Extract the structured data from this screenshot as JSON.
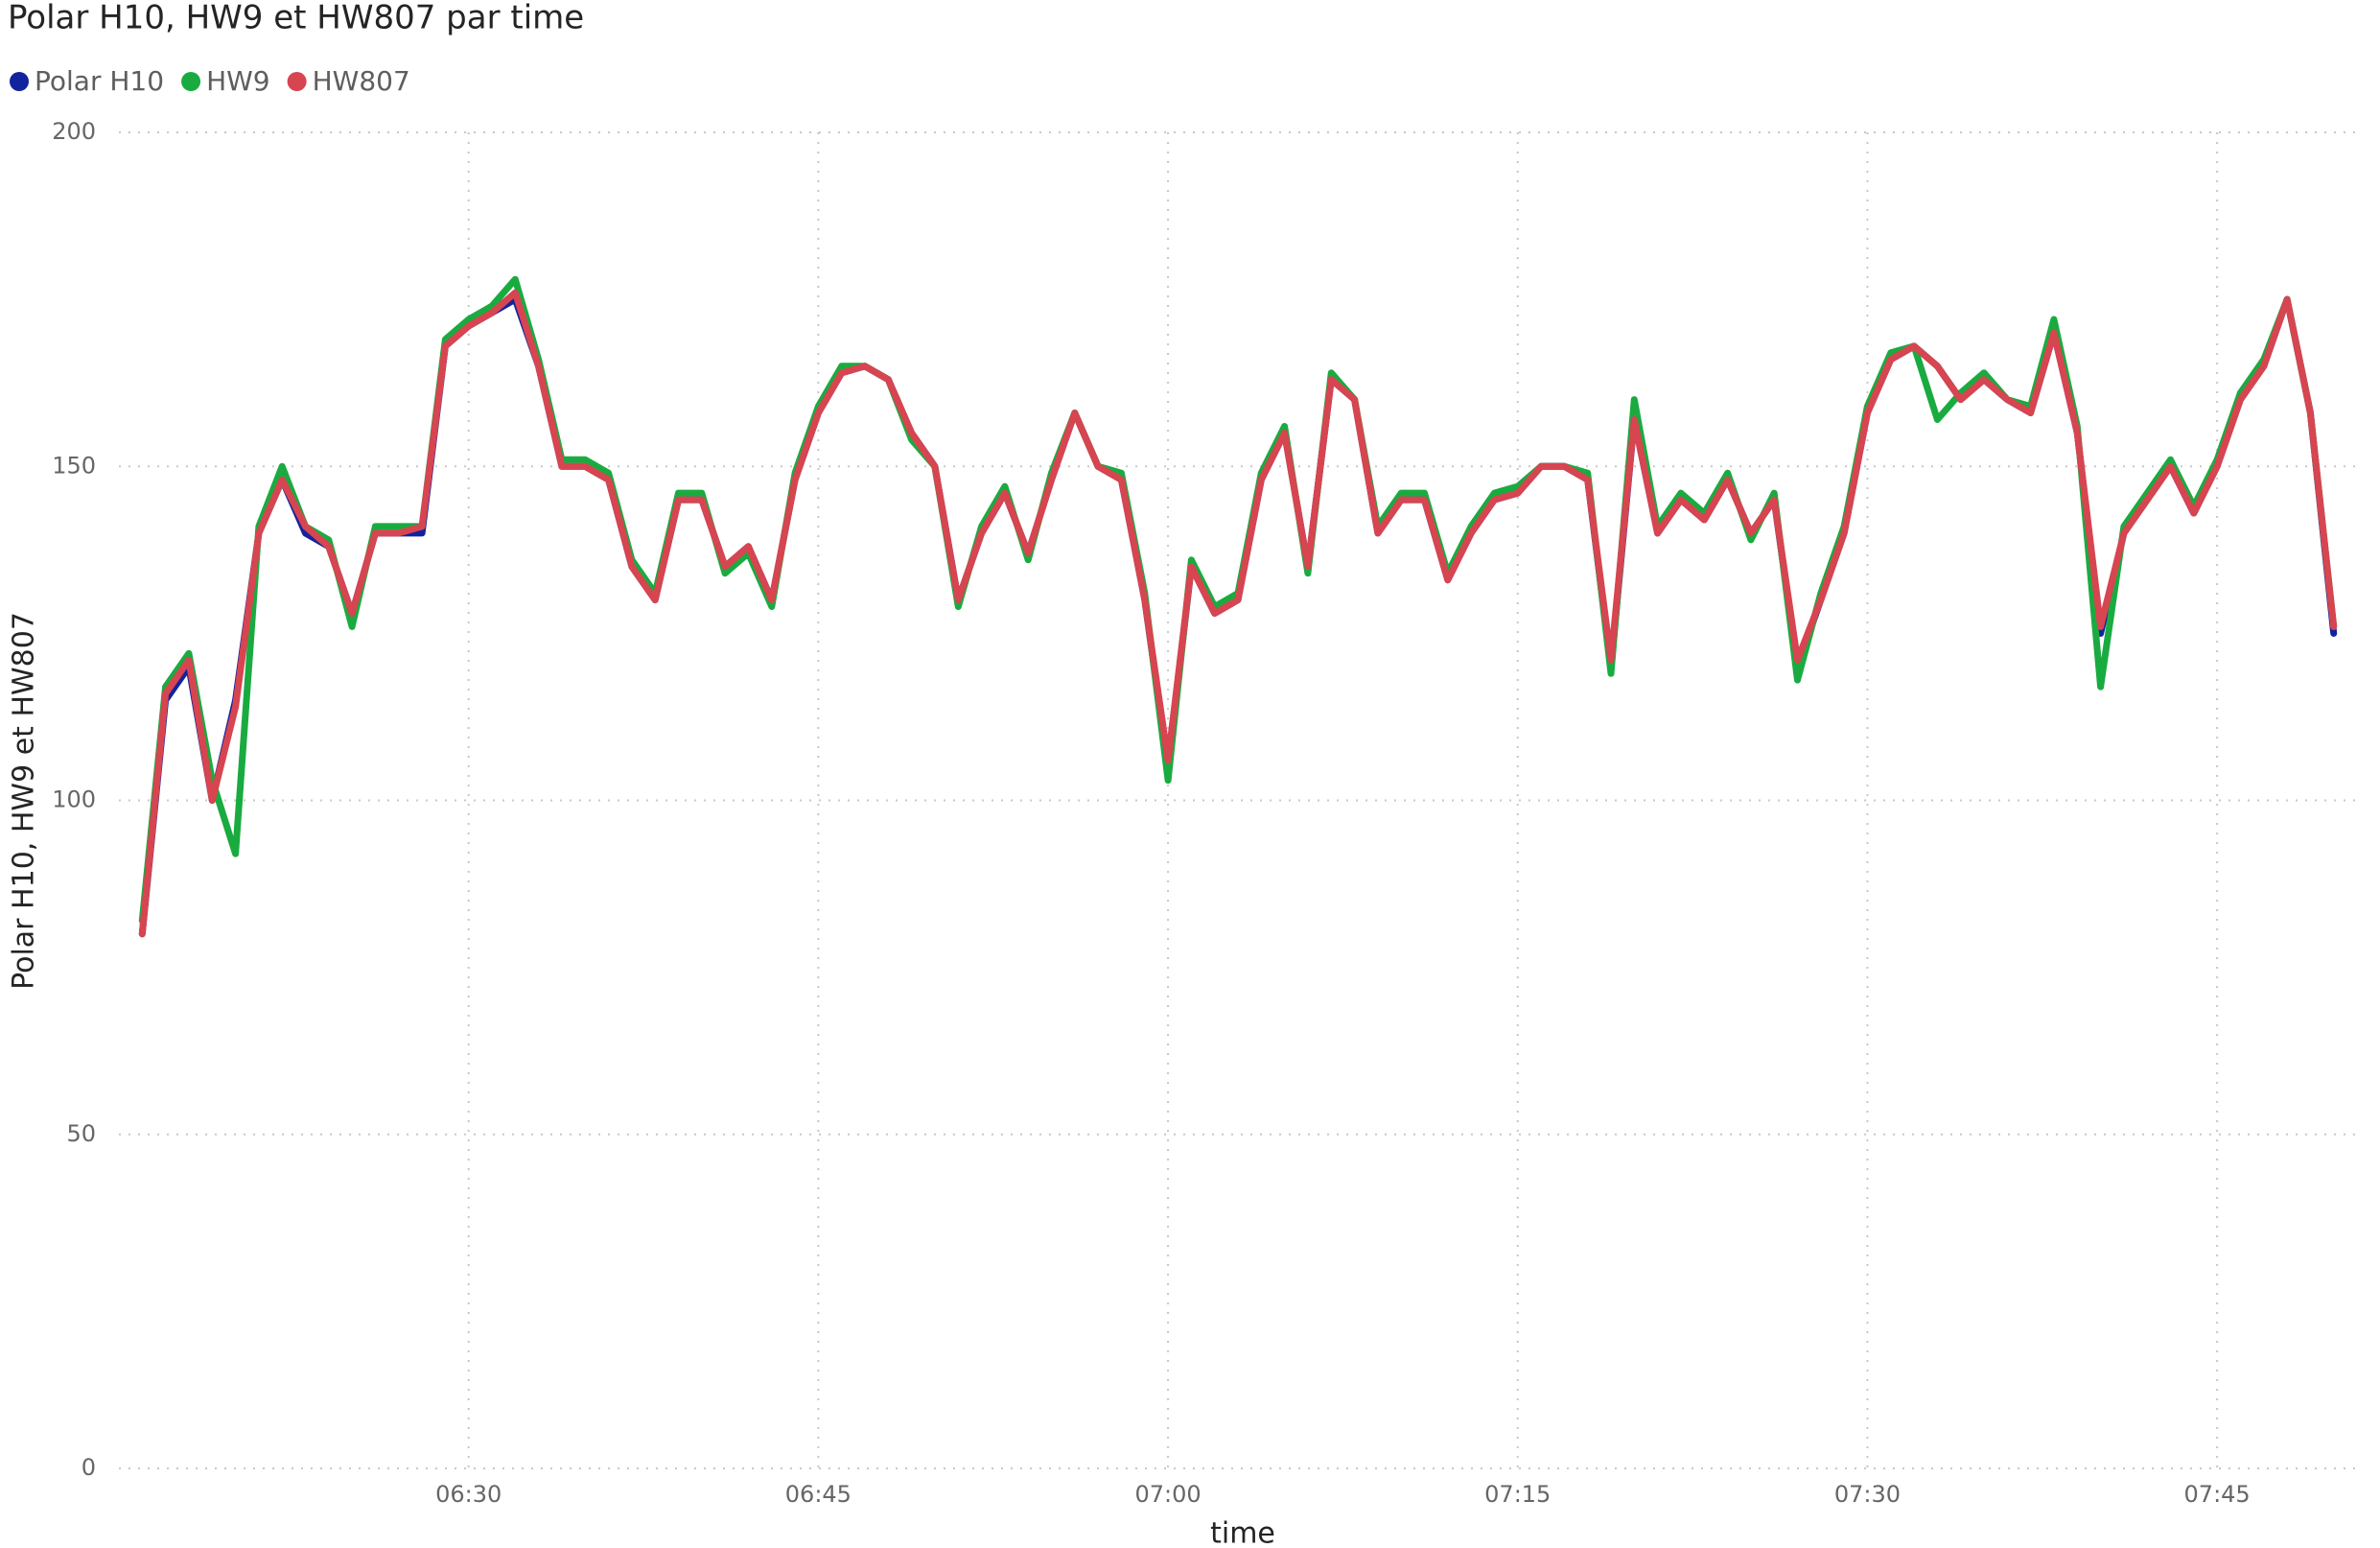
{
  "chart_data": {
    "type": "line",
    "title": "Polar H10, HW9 et HW807 par time",
    "x_label": "time",
    "y_label": "Polar H10, HW9 et HW807",
    "x": [
      "06:16",
      "06:17",
      "06:18",
      "06:19",
      "06:20",
      "06:21",
      "06:22",
      "06:23",
      "06:24",
      "06:25",
      "06:26",
      "06:27",
      "06:28",
      "06:29",
      "06:30",
      "06:31",
      "06:32",
      "06:33",
      "06:34",
      "06:35",
      "06:36",
      "06:37",
      "06:38",
      "06:39",
      "06:40",
      "06:41",
      "06:42",
      "06:43",
      "06:44",
      "06:45",
      "06:46",
      "06:47",
      "06:48",
      "06:49",
      "06:50",
      "06:51",
      "06:52",
      "06:53",
      "06:54",
      "06:55",
      "06:56",
      "06:57",
      "06:58",
      "06:59",
      "07:00",
      "07:01",
      "07:02",
      "07:03",
      "07:04",
      "07:05",
      "07:06",
      "07:07",
      "07:08",
      "07:09",
      "07:10",
      "07:11",
      "07:12",
      "07:13",
      "07:14",
      "07:15",
      "07:16",
      "07:17",
      "07:18",
      "07:19",
      "07:20",
      "07:21",
      "07:22",
      "07:23",
      "07:24",
      "07:25",
      "07:26",
      "07:27",
      "07:28",
      "07:29",
      "07:30",
      "07:31",
      "07:32",
      "07:33",
      "07:34",
      "07:35",
      "07:36",
      "07:37",
      "07:38",
      "07:39",
      "07:40",
      "07:41",
      "07:42",
      "07:43",
      "07:44",
      "07:45",
      "07:46",
      "07:47",
      "07:48",
      "07:49",
      "07:50"
    ],
    "series": [
      {
        "name": "Polar H10",
        "color": "#12239e",
        "values": [
          80,
          115,
          120,
          100,
          115,
          140,
          148,
          140,
          138,
          128,
          140,
          140,
          140,
          168,
          171,
          173,
          175,
          165,
          150,
          150,
          148,
          135,
          130,
          145,
          145,
          135,
          138,
          130,
          148,
          158,
          164,
          165,
          163,
          155,
          150,
          130,
          140,
          146,
          137,
          148,
          158,
          150,
          148,
          130,
          105,
          135,
          128,
          130,
          148,
          155,
          135,
          163,
          160,
          140,
          145,
          145,
          133,
          140,
          145,
          146,
          150,
          150,
          148,
          120,
          157,
          140,
          145,
          142,
          148,
          140,
          145,
          120,
          130,
          140,
          158,
          166,
          168,
          165,
          160,
          163,
          160,
          158,
          170,
          155,
          125,
          140,
          145,
          150,
          143,
          150,
          160,
          165,
          175,
          158,
          125
        ]
      },
      {
        "name": "HW9",
        "color": "#1aab40",
        "values": [
          82,
          117,
          122,
          103,
          92,
          141,
          150,
          141,
          139,
          126,
          141,
          141,
          141,
          169,
          172,
          174,
          178,
          166,
          151,
          151,
          149,
          136,
          131,
          146,
          146,
          134,
          137,
          129,
          149,
          159,
          165,
          165,
          163,
          154,
          150,
          129,
          141,
          147,
          136,
          149,
          158,
          150,
          149,
          131,
          103,
          136,
          129,
          131,
          149,
          156,
          134,
          164,
          160,
          141,
          146,
          146,
          134,
          141,
          146,
          147,
          150,
          150,
          149,
          119,
          160,
          141,
          146,
          143,
          149,
          139,
          146,
          118,
          131,
          141,
          159,
          167,
          168,
          157,
          161,
          164,
          160,
          159,
          172,
          156,
          117,
          141,
          146,
          151,
          144,
          151,
          161,
          166,
          175,
          158,
          126
        ]
      },
      {
        "name": "HW807",
        "color": "#d64550",
        "values": [
          80,
          116,
          121,
          100,
          114,
          140,
          148,
          141,
          138,
          128,
          140,
          140,
          141,
          168,
          171,
          173,
          176,
          165,
          150,
          150,
          148,
          135,
          130,
          145,
          145,
          135,
          138,
          130,
          148,
          158,
          164,
          165,
          163,
          155,
          150,
          130,
          140,
          146,
          137,
          148,
          158,
          150,
          148,
          130,
          106,
          135,
          128,
          130,
          148,
          155,
          135,
          163,
          160,
          140,
          145,
          145,
          133,
          140,
          145,
          146,
          150,
          150,
          148,
          121,
          157,
          140,
          145,
          142,
          148,
          140,
          145,
          121,
          130,
          140,
          158,
          166,
          168,
          165,
          160,
          163,
          160,
          158,
          170,
          155,
          126,
          140,
          145,
          150,
          143,
          150,
          160,
          165,
          175,
          158,
          126
        ]
      }
    ],
    "xlim": [
      "06:15",
      "07:51"
    ],
    "xticks": [
      "06:30",
      "06:45",
      "07:00",
      "07:15",
      "07:30",
      "07:45"
    ],
    "ylim": [
      0,
      200
    ],
    "yticks": [
      0,
      50,
      100,
      150,
      200
    ],
    "grid": true,
    "legend": "top-left"
  }
}
